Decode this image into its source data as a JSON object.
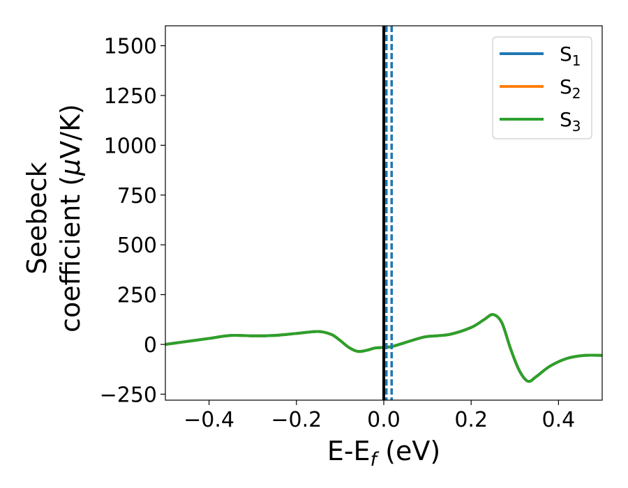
{
  "chart_data": {
    "type": "line",
    "xlabel": "E-E",
    "xlabel_sub": "f",
    "xlabel_unit": " (eV)",
    "ylabel_line1": "Seebeck",
    "ylabel_line2": "coefficient  (",
    "ylabel_mu": "μ",
    "ylabel_unit": "V/K)",
    "xlim": [
      -0.5,
      0.5
    ],
    "ylim": [
      -280,
      1600
    ],
    "xticks": [
      -0.4,
      -0.2,
      0.0,
      0.2,
      0.4
    ],
    "xtick_labels": [
      "−0.4",
      "−0.2",
      "0.0",
      "0.2",
      "0.4"
    ],
    "yticks": [
      -250,
      0,
      250,
      500,
      750,
      1000,
      1250,
      1500
    ],
    "ytick_labels": [
      "−250",
      "0",
      "250",
      "500",
      "750",
      "1000",
      "1250",
      "1500"
    ],
    "grid": false,
    "legend_position": "top-right",
    "series": [
      {
        "name": "S",
        "sub": "1",
        "color": "#1f77b4",
        "x": [
          -0.5,
          -0.45,
          -0.4,
          -0.35,
          -0.3,
          -0.25,
          -0.2,
          -0.15,
          -0.12,
          -0.1,
          -0.08,
          -0.06,
          -0.04,
          -0.02,
          0.0,
          0.02,
          0.05,
          0.08,
          0.1,
          0.15,
          0.2,
          0.23,
          0.25,
          0.27,
          0.29,
          0.31,
          0.33,
          0.35,
          0.38,
          0.42,
          0.46,
          0.5
        ],
        "y": [
          0,
          15,
          30,
          45,
          43,
          45,
          55,
          65,
          50,
          20,
          -15,
          -35,
          -30,
          -18,
          -15,
          -10,
          10,
          30,
          40,
          50,
          85,
          125,
          150,
          110,
          -20,
          -130,
          -185,
          -160,
          -110,
          -70,
          -55,
          -55
        ]
      },
      {
        "name": "S",
        "sub": "2",
        "color": "#ff7f0e",
        "x": [
          -0.5,
          -0.45,
          -0.4,
          -0.35,
          -0.3,
          -0.25,
          -0.2,
          -0.15,
          -0.12,
          -0.1,
          -0.08,
          -0.06,
          -0.04,
          -0.02,
          0.0,
          0.02,
          0.05,
          0.08,
          0.1,
          0.15,
          0.2,
          0.23,
          0.25,
          0.27,
          0.29,
          0.31,
          0.33,
          0.35,
          0.38,
          0.42,
          0.46,
          0.5
        ],
        "y": [
          0,
          15,
          30,
          45,
          43,
          45,
          55,
          65,
          50,
          20,
          -15,
          -35,
          -30,
          -18,
          -15,
          -10,
          10,
          30,
          40,
          50,
          85,
          125,
          150,
          110,
          -20,
          -130,
          -185,
          -160,
          -110,
          -70,
          -55,
          -55
        ]
      },
      {
        "name": "S",
        "sub": "3",
        "color": "#2ca02c",
        "x": [
          -0.5,
          -0.45,
          -0.4,
          -0.35,
          -0.3,
          -0.25,
          -0.2,
          -0.15,
          -0.12,
          -0.1,
          -0.08,
          -0.06,
          -0.04,
          -0.02,
          0.0,
          0.02,
          0.05,
          0.08,
          0.1,
          0.15,
          0.2,
          0.23,
          0.25,
          0.27,
          0.29,
          0.31,
          0.33,
          0.35,
          0.38,
          0.42,
          0.46,
          0.5
        ],
        "y": [
          0,
          15,
          30,
          45,
          43,
          45,
          55,
          65,
          50,
          20,
          -15,
          -35,
          -30,
          -18,
          -15,
          -10,
          10,
          30,
          40,
          50,
          85,
          125,
          150,
          110,
          -20,
          -130,
          -185,
          -160,
          -110,
          -70,
          -55,
          -55
        ]
      }
    ],
    "vlines": [
      {
        "x": 0.0,
        "color": "#000000",
        "style": "solid"
      },
      {
        "x": 0.006,
        "color": "#1f77b4",
        "style": "dashed"
      },
      {
        "x": 0.018,
        "color": "#1f77b4",
        "style": "dashed"
      }
    ]
  }
}
